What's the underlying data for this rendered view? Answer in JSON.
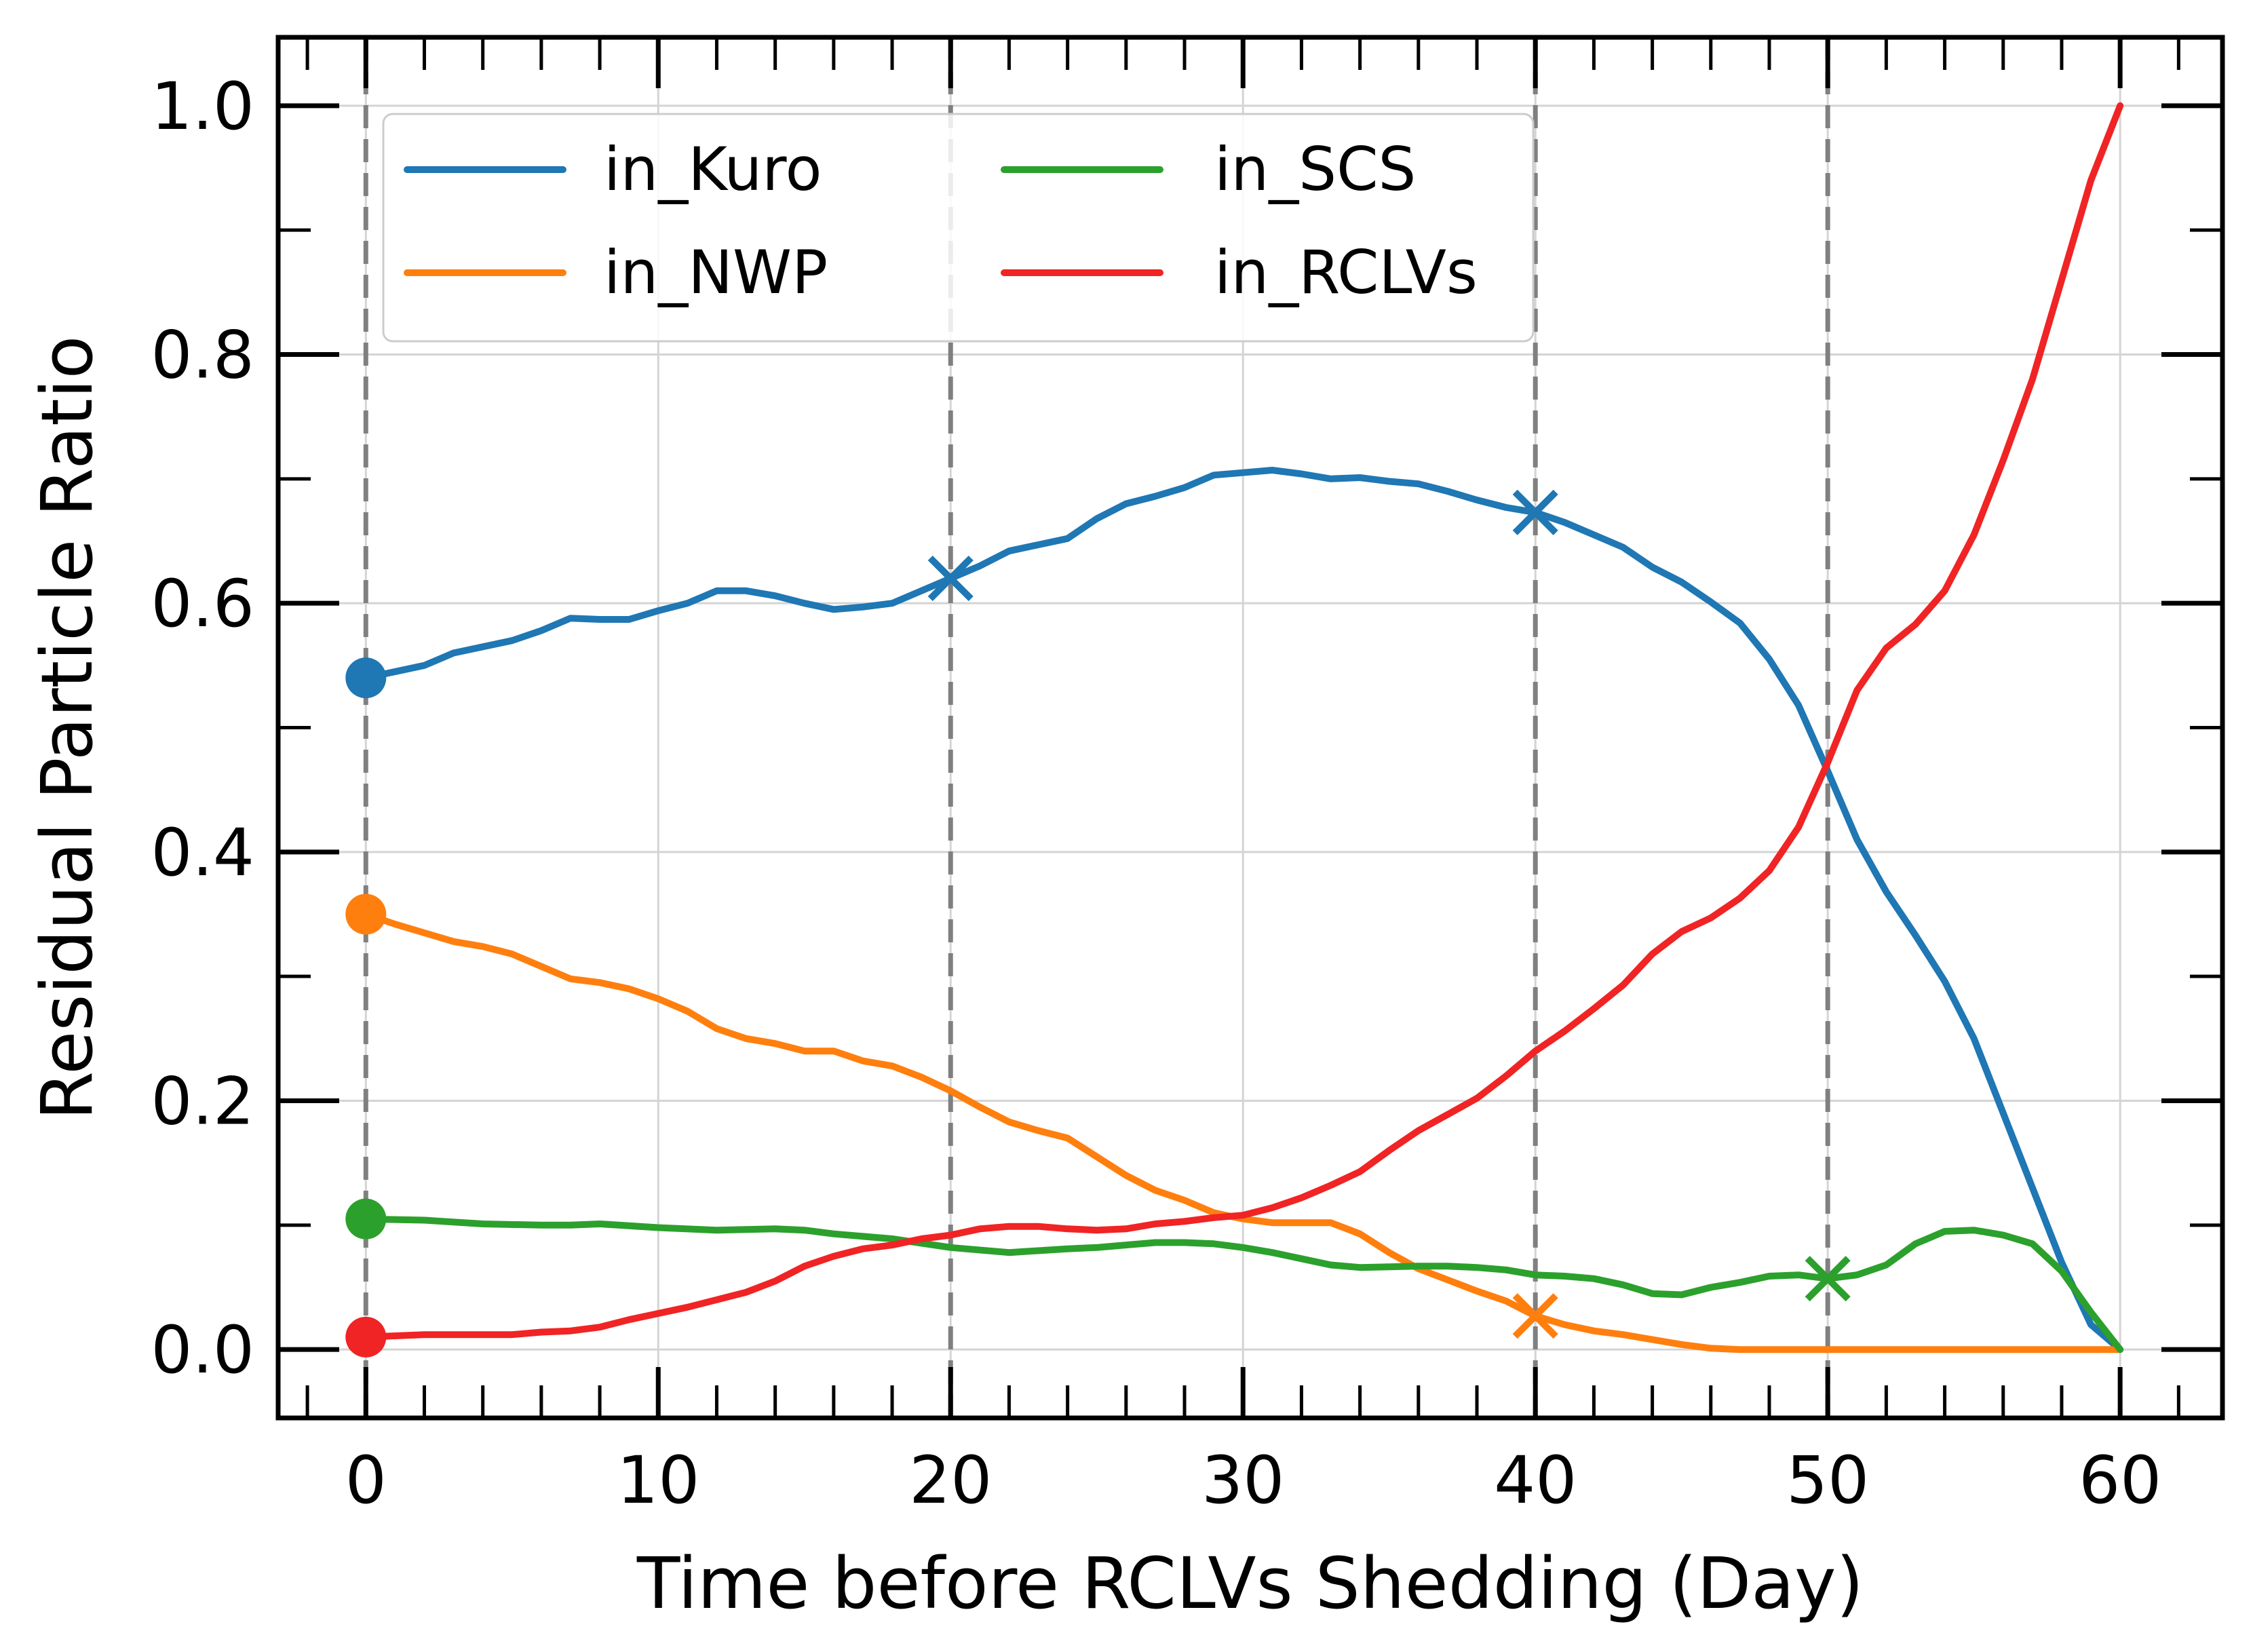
{
  "chart_data": {
    "type": "line",
    "title": "",
    "xlabel": "Time before RCLVs Shedding (Day)",
    "ylabel": "Residual Particle Ratio",
    "xlim": [
      -3,
      63.5
    ],
    "ylim": [
      -0.055,
      1.055
    ],
    "xticks": [
      0,
      10,
      20,
      30,
      40,
      50,
      60
    ],
    "xtick_labels": [
      "0",
      "10",
      "20",
      "30",
      "40",
      "50",
      "60"
    ],
    "yticks": [
      0.0,
      0.2,
      0.4,
      0.6,
      0.8,
      1.0
    ],
    "ytick_labels": [
      "0.0",
      "0.2",
      "0.4",
      "0.6",
      "0.8",
      "1.0"
    ],
    "grid": true,
    "legend_position": "top-left",
    "vlines": [
      0,
      20,
      40,
      50
    ],
    "series": [
      {
        "name": "in_Kuro",
        "color": "#1f77b4",
        "x": [
          0,
          2,
          3,
          5,
          6,
          7,
          8,
          9,
          10,
          11,
          12,
          13,
          14,
          15,
          16,
          17,
          18,
          19,
          20,
          21,
          22,
          23,
          24,
          25,
          26,
          27,
          28,
          29,
          30,
          31,
          32,
          33,
          34,
          35,
          36,
          37,
          38,
          39,
          40,
          41,
          42,
          43,
          44,
          45,
          46,
          47,
          48,
          49,
          50,
          51,
          52,
          53,
          54,
          55,
          56,
          57,
          58,
          59,
          60
        ],
        "values": [
          0.54,
          0.55,
          0.56,
          0.57,
          0.578,
          0.588,
          0.587,
          0.587,
          0.594,
          0.6,
          0.61,
          0.61,
          0.606,
          0.6,
          0.595,
          0.597,
          0.6,
          0.61,
          0.62,
          0.63,
          0.642,
          0.647,
          0.652,
          0.668,
          0.68,
          0.686,
          0.693,
          0.703,
          0.705,
          0.707,
          0.704,
          0.7,
          0.701,
          0.698,
          0.696,
          0.69,
          0.683,
          0.677,
          0.673,
          0.665,
          0.655,
          0.645,
          0.629,
          0.617,
          0.601,
          0.584,
          0.555,
          0.518,
          0.465,
          0.41,
          0.368,
          0.333,
          0.296,
          0.25,
          0.19,
          0.13,
          0.07,
          0.02,
          0.0
        ]
      },
      {
        "name": "in_NWP",
        "color": "#ff7f0e",
        "x": [
          0,
          1,
          2,
          3,
          4,
          5,
          6,
          7,
          8,
          9,
          10,
          11,
          12,
          13,
          14,
          15,
          16,
          17,
          18,
          19,
          20,
          21,
          22,
          23,
          24,
          25,
          26,
          27,
          28,
          29,
          30,
          31,
          32,
          33,
          34,
          35,
          36,
          37,
          38,
          39,
          40,
          41,
          42,
          43,
          44,
          45,
          46,
          47,
          48,
          49,
          50,
          51,
          52,
          53,
          54,
          55,
          56,
          57,
          58,
          59,
          60
        ],
        "values": [
          0.35,
          0.342,
          0.335,
          0.328,
          0.324,
          0.318,
          0.308,
          0.298,
          0.295,
          0.29,
          0.282,
          0.272,
          0.258,
          0.25,
          0.246,
          0.24,
          0.24,
          0.232,
          0.228,
          0.219,
          0.208,
          0.195,
          0.183,
          0.176,
          0.17,
          0.155,
          0.14,
          0.128,
          0.12,
          0.11,
          0.105,
          0.102,
          0.102,
          0.102,
          0.093,
          0.078,
          0.065,
          0.056,
          0.047,
          0.039,
          0.027,
          0.02,
          0.015,
          0.012,
          0.008,
          0.004,
          0.001,
          0.0,
          0.0,
          0.0,
          0.0,
          0.0,
          0.0,
          0.0,
          0.0,
          0.0,
          0.0,
          0.0,
          0.0,
          0.0,
          0.0
        ]
      },
      {
        "name": "in_SCS",
        "color": "#2ca02c",
        "x": [
          0,
          2,
          4,
          6,
          7,
          8,
          10,
          12,
          14,
          15,
          16,
          18,
          20,
          22,
          24,
          25,
          27,
          28,
          29,
          30,
          31,
          32,
          33,
          34,
          36,
          37,
          38,
          39,
          40,
          41,
          42,
          43,
          44,
          45,
          46,
          47,
          48,
          49,
          50,
          51,
          52,
          53,
          54,
          55,
          56,
          57,
          58,
          59,
          60
        ],
        "values": [
          0.105,
          0.104,
          0.101,
          0.1,
          0.1,
          0.101,
          0.098,
          0.096,
          0.097,
          0.096,
          0.093,
          0.089,
          0.082,
          0.078,
          0.081,
          0.082,
          0.086,
          0.086,
          0.085,
          0.082,
          0.078,
          0.073,
          0.068,
          0.066,
          0.067,
          0.067,
          0.066,
          0.064,
          0.06,
          0.059,
          0.057,
          0.052,
          0.045,
          0.044,
          0.05,
          0.054,
          0.059,
          0.06,
          0.057,
          0.06,
          0.068,
          0.085,
          0.095,
          0.096,
          0.092,
          0.085,
          0.063,
          0.03,
          0.0
        ]
      },
      {
        "name": "in_RCLVs",
        "color": "#f02424",
        "x": [
          0,
          1,
          2,
          3,
          4,
          5,
          6,
          7,
          8,
          9,
          10,
          11,
          12,
          13,
          14,
          15,
          16,
          17,
          18,
          19,
          20,
          21,
          22,
          23,
          24,
          25,
          26,
          27,
          28,
          29,
          30,
          31,
          32,
          33,
          34,
          35,
          36,
          37,
          38,
          39,
          40,
          41,
          42,
          43,
          44,
          45,
          46,
          47,
          48,
          49,
          50,
          51,
          52,
          53,
          54,
          55,
          56,
          57,
          58,
          59,
          60
        ],
        "values": [
          0.01,
          0.011,
          0.012,
          0.012,
          0.012,
          0.012,
          0.014,
          0.015,
          0.018,
          0.024,
          0.029,
          0.034,
          0.04,
          0.046,
          0.055,
          0.067,
          0.075,
          0.081,
          0.084,
          0.089,
          0.092,
          0.097,
          0.099,
          0.099,
          0.097,
          0.096,
          0.097,
          0.101,
          0.103,
          0.106,
          0.108,
          0.114,
          0.122,
          0.132,
          0.143,
          0.16,
          0.176,
          0.189,
          0.202,
          0.22,
          0.24,
          0.256,
          0.274,
          0.293,
          0.318,
          0.336,
          0.347,
          0.363,
          0.385,
          0.42,
          0.472,
          0.53,
          0.564,
          0.583,
          0.61,
          0.655,
          0.715,
          0.78,
          0.86,
          0.94,
          1.0
        ]
      }
    ],
    "markers": [
      {
        "series": "in_Kuro",
        "shape": "circle",
        "x": 0,
        "y": 0.54
      },
      {
        "series": "in_NWP",
        "shape": "circle",
        "x": 0,
        "y": 0.35
      },
      {
        "series": "in_SCS",
        "shape": "circle",
        "x": 0,
        "y": 0.105
      },
      {
        "series": "in_RCLVs",
        "shape": "circle",
        "x": 0,
        "y": 0.01
      },
      {
        "series": "in_Kuro",
        "shape": "x",
        "x": 20,
        "y": 0.62
      },
      {
        "series": "in_Kuro",
        "shape": "x",
        "x": 40,
        "y": 0.673
      },
      {
        "series": "in_NWP",
        "shape": "x",
        "x": 40,
        "y": 0.027
      },
      {
        "series": "in_SCS",
        "shape": "x",
        "x": 50,
        "y": 0.057
      }
    ]
  }
}
